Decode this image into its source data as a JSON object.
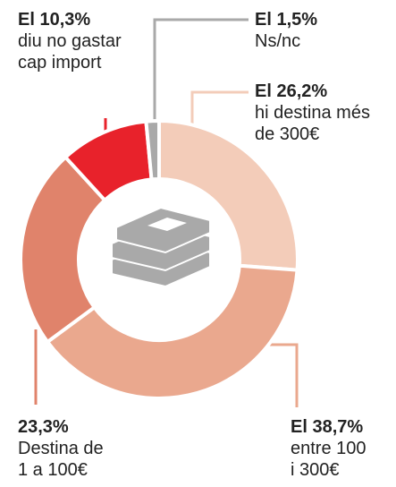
{
  "chart_data": {
    "type": "donut",
    "categories": [
      "hi destina més de 300€",
      "entre 100 i 300€",
      "Destina de 1 a 100€",
      "diu no gastar cap import",
      "Ns/nc"
    ],
    "values": [
      26.2,
      38.7,
      23.3,
      10.3,
      1.5
    ],
    "value_labels": [
      "El 26,2%",
      "El 38,7%",
      "23,3%",
      "El 10,3%",
      "El 1,5%"
    ],
    "colors": [
      "#f3ccb9",
      "#eaa88e",
      "#e0836b",
      "#e8222b",
      "#a9a9a9"
    ]
  }
}
